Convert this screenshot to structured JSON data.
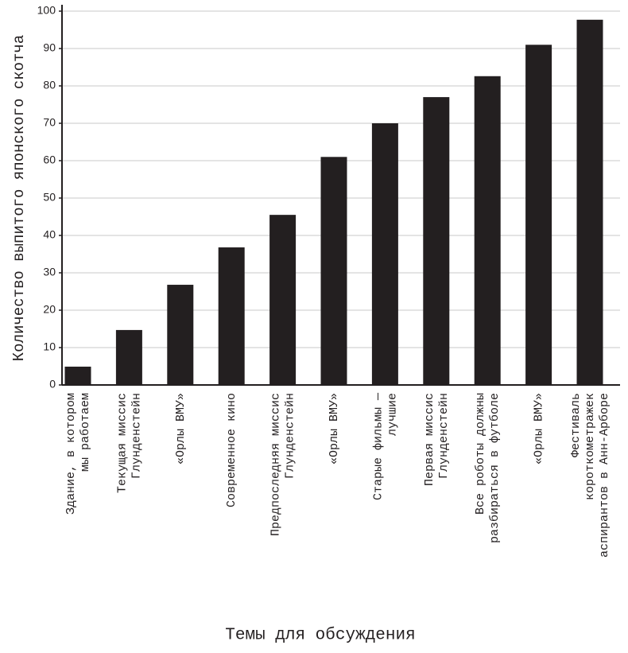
{
  "chart_data": {
    "type": "bar",
    "x_label": "Темы для обсуждения",
    "y_label": "Количество выпитого японского скотча",
    "categories": [
      [
        "Здание, в котором",
        "мы работаем"
      ],
      [
        "Текущая миссис",
        "Глунденстейн"
      ],
      [
        "«Орлы ВМУ»"
      ],
      [
        "Современное кино"
      ],
      [
        "Предпоследняя миссис",
        "Глунденстейн"
      ],
      [
        "«Орлы ВМУ»"
      ],
      [
        "Старые фильмы —",
        "лучшие"
      ],
      [
        "Первая миссис",
        "Глунденстейн"
      ],
      [
        "Все роботы должны",
        "разбираться в футболе"
      ],
      [
        "«Орлы ВМУ»"
      ],
      [
        "Фестиваль",
        "короткометражек",
        "аспирантов в Анн-Арборе"
      ]
    ],
    "values": [
      4.9,
      14.7,
      26.8,
      36.8,
      45.5,
      61,
      70,
      77,
      82.6,
      91,
      97.7
    ],
    "color": "#231f20",
    "ylim": [
      0,
      100
    ],
    "yticks": [
      0,
      10,
      20,
      30,
      40,
      50,
      60,
      70,
      80,
      90,
      100
    ],
    "grid": true
  }
}
